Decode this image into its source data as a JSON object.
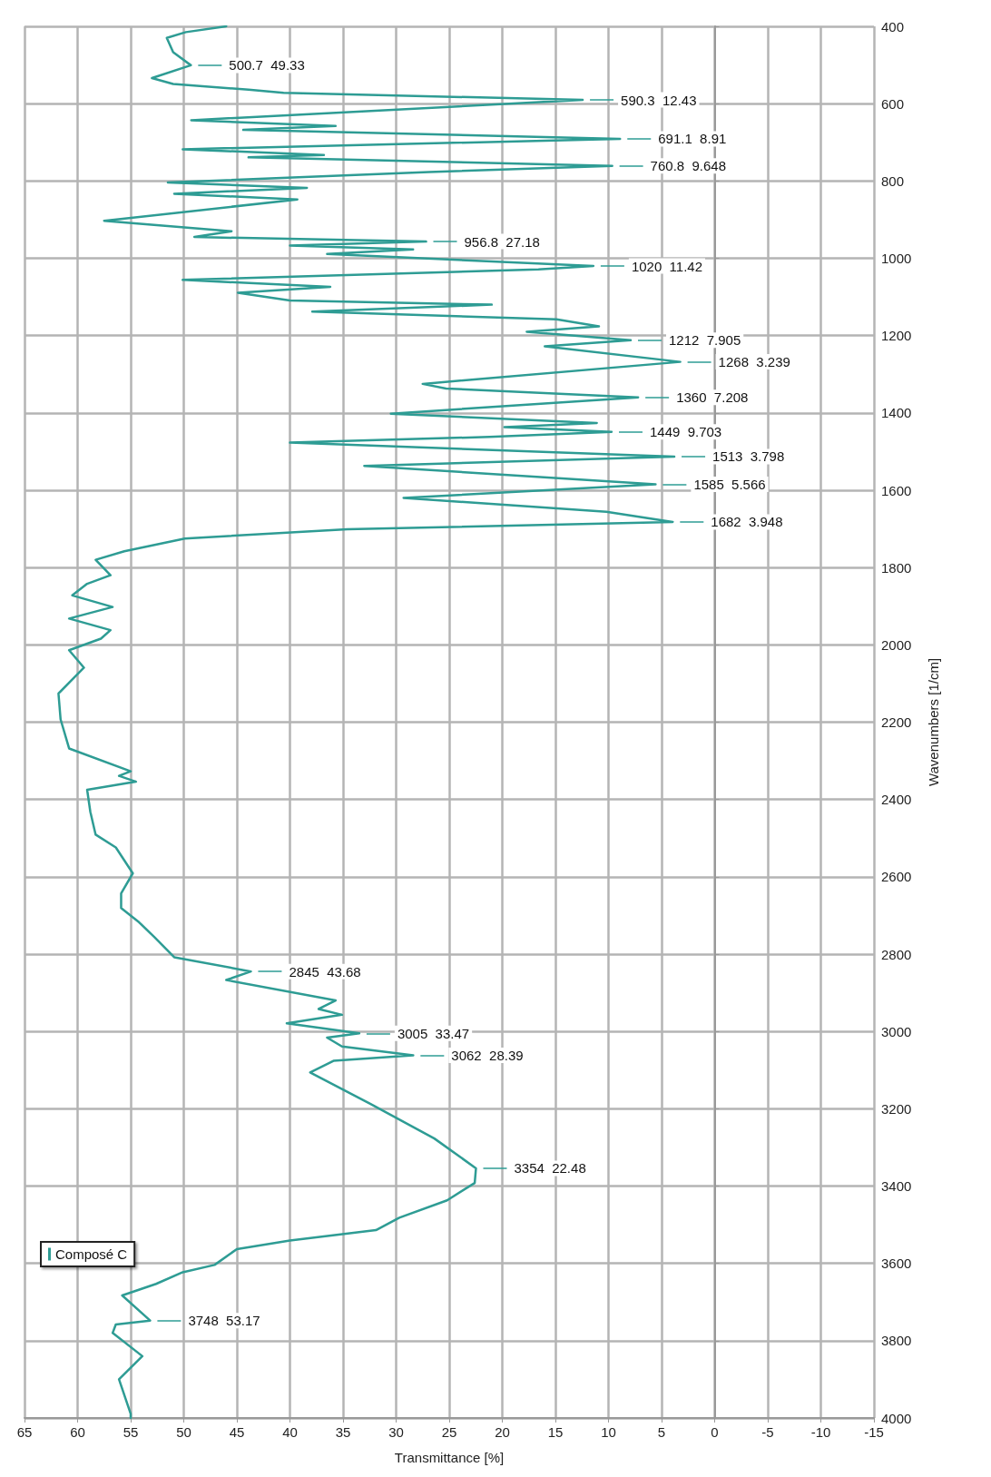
{
  "chart_data": {
    "type": "line",
    "orientation": "horizontal",
    "xlabel": "Transmittance [%]",
    "ylabel": "Wavenumbers [1/cm]",
    "x": [
      400,
      415,
      430,
      467,
      500.7,
      534,
      549,
      564,
      572,
      590.3,
      643,
      658,
      668,
      691.1,
      718,
      733,
      739,
      760.8,
      777,
      804,
      818,
      833,
      848,
      903,
      930,
      945,
      956.8,
      967,
      977,
      989,
      1020,
      1029,
      1056,
      1074,
      1089,
      1109,
      1120,
      1138,
      1158,
      1176,
      1190,
      1212,
      1228,
      1268,
      1325,
      1337,
      1360,
      1402,
      1426,
      1437,
      1449,
      1462,
      1477,
      1513,
      1537,
      1585,
      1620,
      1656,
      1682,
      1701,
      1725,
      1758,
      1780,
      1820,
      1842,
      1872,
      1902,
      1932,
      1962,
      1984,
      2014,
      2059,
      2126,
      2193,
      2268,
      2327,
      2339,
      2354,
      2375,
      2432,
      2491,
      2524,
      2591,
      2643,
      2681,
      2718,
      2755,
      2808,
      2845,
      2867,
      2920,
      2942,
      2957,
      2979,
      3005,
      3016,
      3039,
      3062,
      3076,
      3106,
      3188,
      3277,
      3354,
      3392,
      3437,
      3482,
      3514,
      3541,
      3563,
      3604,
      3623,
      3653,
      3683,
      3748,
      3758,
      3780,
      3840,
      3900,
      3989,
      4000
    ],
    "series": [
      {
        "name": "Composé C",
        "color": "#2e9c94",
        "values": [
          46.0,
          49.8,
          51.6,
          51.0,
          49.33,
          53.0,
          51.0,
          43.9,
          40.6,
          12.43,
          49.3,
          35.7,
          44.4,
          8.91,
          50.1,
          36.8,
          43.9,
          9.648,
          26.9,
          51.5,
          38.4,
          50.9,
          39.3,
          57.5,
          45.5,
          49.0,
          27.18,
          40.0,
          28.4,
          36.5,
          11.42,
          16.6,
          50.1,
          36.2,
          44.9,
          40.0,
          21.0,
          37.9,
          14.9,
          10.9,
          17.7,
          7.905,
          16.0,
          3.239,
          27.5,
          25.3,
          7.208,
          30.5,
          11.1,
          19.8,
          9.703,
          21.2,
          40.0,
          3.798,
          33.0,
          5.566,
          29.3,
          10.2,
          3.948,
          34.6,
          49.9,
          55.6,
          58.3,
          56.9,
          59.1,
          60.5,
          56.7,
          60.8,
          56.9,
          57.8,
          60.8,
          59.4,
          61.8,
          61.6,
          60.8,
          55.0,
          56.1,
          54.5,
          59.1,
          58.8,
          58.3,
          56.4,
          54.8,
          55.9,
          55.9,
          54.2,
          52.8,
          50.9,
          43.68,
          46.0,
          35.7,
          37.3,
          35.1,
          40.3,
          33.47,
          36.5,
          35.1,
          28.39,
          35.9,
          38.1,
          32.4,
          26.4,
          22.48,
          22.6,
          25.2,
          29.7,
          31.9,
          40.0,
          45.0,
          47.1,
          50.1,
          52.6,
          55.8,
          53.17,
          56.4,
          56.7,
          53.9,
          56.1,
          55.0,
          55.0
        ]
      }
    ],
    "ylim": [
      4000,
      400
    ],
    "yticks": [
      400,
      600,
      800,
      1000,
      1200,
      1400,
      1600,
      1800,
      2000,
      2200,
      2400,
      2600,
      2800,
      3000,
      3200,
      3400,
      3600,
      3800,
      4000
    ],
    "xlim": [
      65,
      -15
    ],
    "xticks": [
      -15,
      -10,
      -5,
      0,
      5,
      10,
      15,
      20,
      25,
      30,
      35,
      40,
      45,
      50,
      55,
      60,
      65
    ],
    "grid": true,
    "legend": "bottom left",
    "marker": "none",
    "line_style": "solid",
    "annotations": [
      {
        "text": "500.7  49.33",
        "y": 500.7,
        "x": 49.33
      },
      {
        "text": "590.3  12.43",
        "y": 590.3,
        "x": 12.43
      },
      {
        "text": "691.1  8.91",
        "y": 691.1,
        "x": 8.91
      },
      {
        "text": "760.8  9.648",
        "y": 760.8,
        "x": 9.648
      },
      {
        "text": "956.8  27.18",
        "y": 956.8,
        "x": 27.18
      },
      {
        "text": "1020  11.42",
        "y": 1020,
        "x": 11.42
      },
      {
        "text": "1212  7.905",
        "y": 1212,
        "x": 7.905
      },
      {
        "text": "1268  3.239",
        "y": 1268,
        "x": 3.239
      },
      {
        "text": "1360  7.208",
        "y": 1360,
        "x": 7.208
      },
      {
        "text": "1449  9.703",
        "y": 1449,
        "x": 9.703
      },
      {
        "text": "1513  3.798",
        "y": 1513,
        "x": 3.798
      },
      {
        "text": "1585  5.566",
        "y": 1585,
        "x": 5.566
      },
      {
        "text": "1682  3.948",
        "y": 1682,
        "x": 3.948
      },
      {
        "text": "2845  43.68",
        "y": 2845,
        "x": 43.68
      },
      {
        "text": "3005  33.47",
        "y": 3005,
        "x": 33.47
      },
      {
        "text": "3062  28.39",
        "y": 3062,
        "x": 28.39
      },
      {
        "text": "3354  22.48",
        "y": 3354,
        "x": 22.48
      },
      {
        "text": "3748  53.17",
        "y": 3748,
        "x": 53.17
      }
    ]
  }
}
